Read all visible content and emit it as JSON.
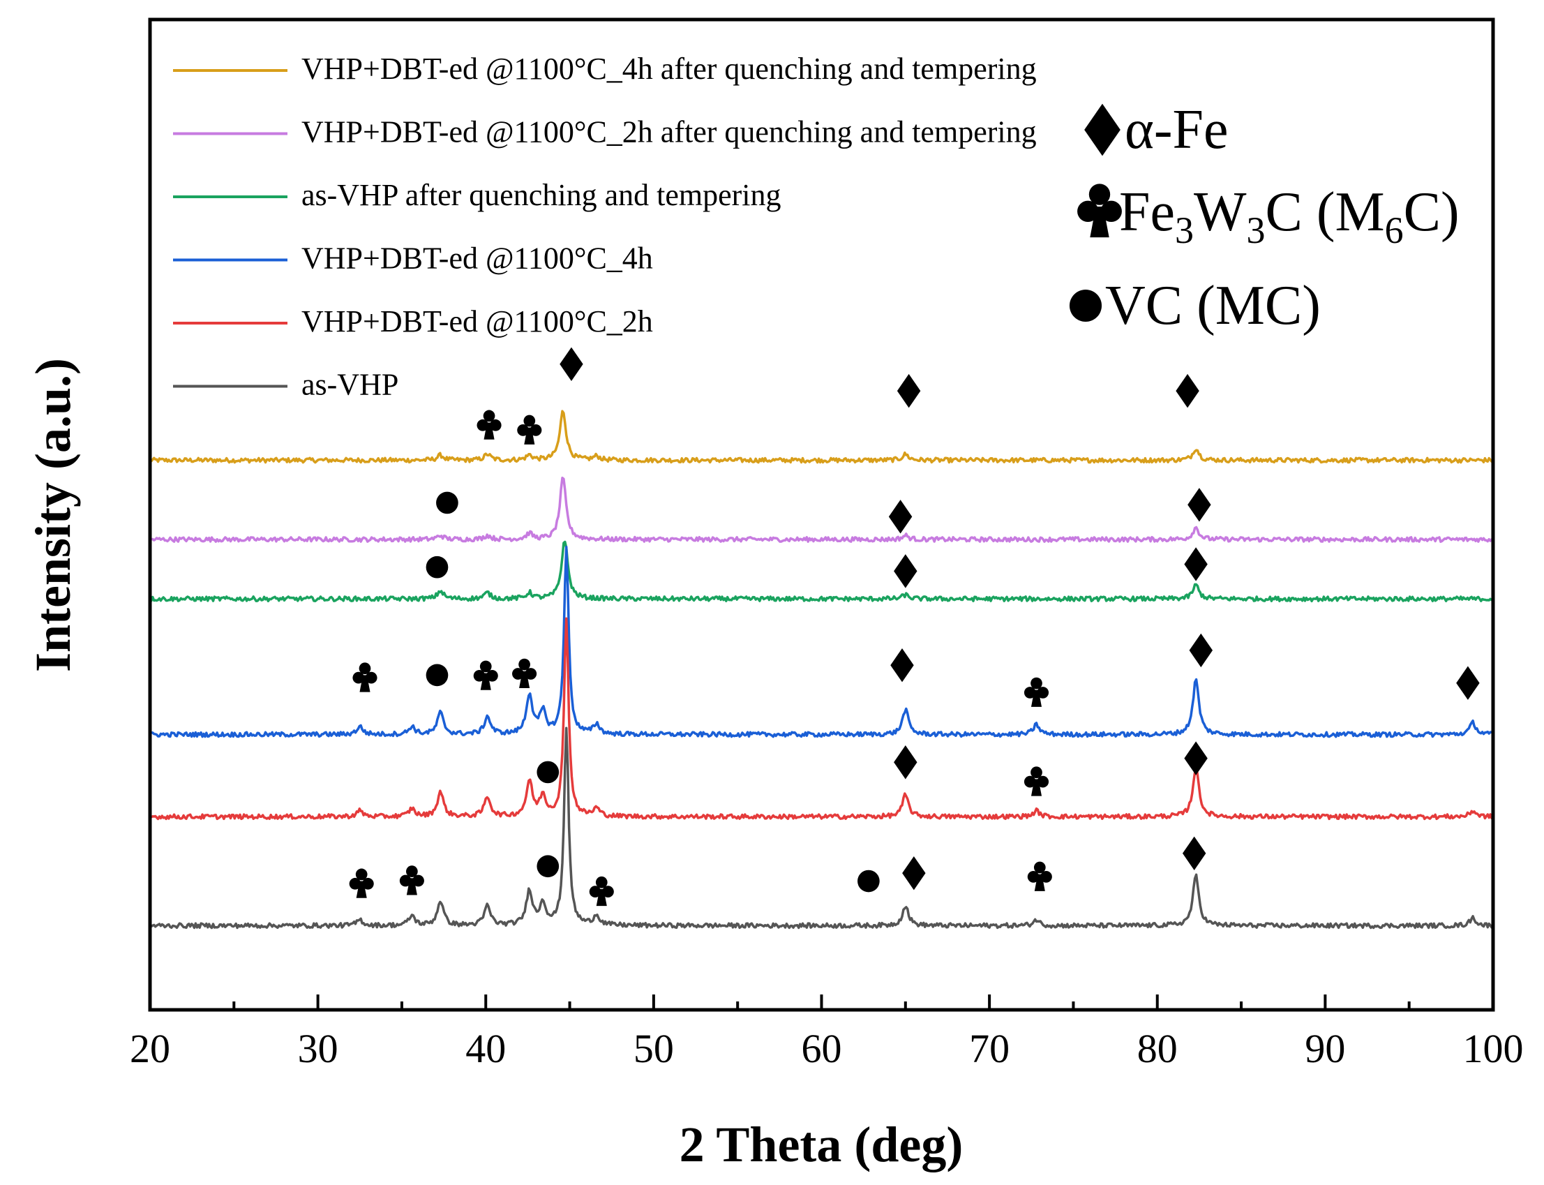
{
  "chart_data": {
    "type": "line",
    "xlabel": "2 Theta (deg)",
    "ylabel": "Intensity (a.u.)",
    "xlim": [
      20,
      100
    ],
    "xticks": [
      20,
      30,
      40,
      50,
      60,
      70,
      80,
      90,
      100
    ],
    "grid": false,
    "legend_position": "top-left",
    "series": [
      {
        "name": "VHP+DBT-ed @1100°C_4h after quenching and tempering",
        "color": "#D89E1A",
        "baseline": 0.555,
        "peaks": [
          [
            37.3,
            0.005
          ],
          [
            40.1,
            0.006
          ],
          [
            42.6,
            0.005
          ],
          [
            44.6,
            0.05
          ],
          [
            46.6,
            0.004
          ],
          [
            65.0,
            0.006
          ],
          [
            82.3,
            0.012
          ]
        ]
      },
      {
        "name": "VHP+DBT-ed @1100°C_2h after quenching and tempering",
        "color": "#C77BE0",
        "baseline": 0.475,
        "peaks": [
          [
            37.3,
            0.004
          ],
          [
            40.1,
            0.004
          ],
          [
            42.6,
            0.006
          ],
          [
            44.6,
            0.062
          ],
          [
            65.0,
            0.004
          ],
          [
            82.3,
            0.012
          ]
        ]
      },
      {
        "name": "as-VHP after quenching and tempering",
        "color": "#1AA35F",
        "baseline": 0.415,
        "peaks": [
          [
            37.3,
            0.008
          ],
          [
            40.1,
            0.006
          ],
          [
            42.6,
            0.006
          ],
          [
            44.7,
            0.06
          ],
          [
            65.0,
            0.004
          ],
          [
            82.3,
            0.014
          ]
        ]
      },
      {
        "name": "VHP+DBT-ed @1100°C_4h",
        "color": "#1A5FD6",
        "baseline": 0.278,
        "peaks": [
          [
            32.5,
            0.008
          ],
          [
            35.6,
            0.008
          ],
          [
            37.3,
            0.022
          ],
          [
            40.1,
            0.018
          ],
          [
            42.6,
            0.04
          ],
          [
            43.4,
            0.022
          ],
          [
            44.8,
            0.19
          ],
          [
            46.6,
            0.01
          ],
          [
            65.0,
            0.025
          ],
          [
            72.8,
            0.01
          ],
          [
            82.3,
            0.055
          ],
          [
            98.8,
            0.012
          ]
        ]
      },
      {
        "name": "VHP+DBT-ed @1100°C_2h",
        "color": "#E53B3B",
        "baseline": 0.195,
        "peaks": [
          [
            32.5,
            0.006
          ],
          [
            35.6,
            0.008
          ],
          [
            37.3,
            0.025
          ],
          [
            40.1,
            0.02
          ],
          [
            42.6,
            0.035
          ],
          [
            43.4,
            0.02
          ],
          [
            44.8,
            0.2
          ],
          [
            46.6,
            0.008
          ],
          [
            65.0,
            0.022
          ],
          [
            72.8,
            0.006
          ],
          [
            82.3,
            0.05
          ],
          [
            98.8,
            0.006
          ]
        ]
      },
      {
        "name": "as-VHP",
        "color": "#555555",
        "baseline": 0.085,
        "peaks": [
          [
            32.5,
            0.006
          ],
          [
            35.6,
            0.01
          ],
          [
            37.3,
            0.025
          ],
          [
            40.1,
            0.02
          ],
          [
            42.6,
            0.035
          ],
          [
            43.4,
            0.022
          ],
          [
            44.8,
            0.2
          ],
          [
            46.6,
            0.01
          ],
          [
            65.0,
            0.02
          ],
          [
            72.8,
            0.006
          ],
          [
            82.3,
            0.05
          ],
          [
            98.8,
            0.008
          ]
        ]
      }
    ],
    "phase_legend": [
      {
        "symbol": "diamond",
        "label": "α-Fe"
      },
      {
        "symbol": "club",
        "label_main": "Fe",
        "sub1": "3",
        "mid": "W",
        "sub2": "3",
        "mid2": "C (M",
        "sub3": "6",
        "end": "C)"
      },
      {
        "symbol": "circle",
        "label": "VC (MC)"
      }
    ],
    "annotations": [
      {
        "symbol": "club",
        "x": 40.2,
        "y": 0.593
      },
      {
        "symbol": "club",
        "x": 42.6,
        "y": 0.588
      },
      {
        "symbol": "diamond",
        "x": 45.1,
        "y": 0.652
      },
      {
        "symbol": "diamond",
        "x": 65.2,
        "y": 0.625
      },
      {
        "symbol": "diamond",
        "x": 81.8,
        "y": 0.625
      },
      {
        "symbol": "circle",
        "x": 37.7,
        "y": 0.512
      },
      {
        "symbol": "diamond",
        "x": 64.7,
        "y": 0.498
      },
      {
        "symbol": "diamond",
        "x": 82.5,
        "y": 0.51
      },
      {
        "symbol": "circle",
        "x": 37.1,
        "y": 0.447
      },
      {
        "symbol": "diamond",
        "x": 65.0,
        "y": 0.443
      },
      {
        "symbol": "diamond",
        "x": 82.3,
        "y": 0.45
      },
      {
        "symbol": "club",
        "x": 32.8,
        "y": 0.338
      },
      {
        "symbol": "circle",
        "x": 37.1,
        "y": 0.338
      },
      {
        "symbol": "club",
        "x": 40.0,
        "y": 0.34
      },
      {
        "symbol": "club",
        "x": 42.3,
        "y": 0.342
      },
      {
        "symbol": "diamond",
        "x": 64.8,
        "y": 0.348
      },
      {
        "symbol": "club",
        "x": 72.8,
        "y": 0.323
      },
      {
        "symbol": "diamond",
        "x": 82.6,
        "y": 0.363
      },
      {
        "symbol": "diamond",
        "x": 98.5,
        "y": 0.33
      },
      {
        "symbol": "circle",
        "x": 43.7,
        "y": 0.24
      },
      {
        "symbol": "diamond",
        "x": 65.0,
        "y": 0.25
      },
      {
        "symbol": "club",
        "x": 72.8,
        "y": 0.233
      },
      {
        "symbol": "diamond",
        "x": 82.3,
        "y": 0.254
      },
      {
        "symbol": "club",
        "x": 32.6,
        "y": 0.13
      },
      {
        "symbol": "club",
        "x": 35.6,
        "y": 0.133
      },
      {
        "symbol": "circle",
        "x": 43.7,
        "y": 0.145
      },
      {
        "symbol": "club",
        "x": 46.9,
        "y": 0.122
      },
      {
        "symbol": "circle",
        "x": 62.8,
        "y": 0.13
      },
      {
        "symbol": "diamond",
        "x": 65.5,
        "y": 0.138
      },
      {
        "symbol": "club",
        "x": 73.0,
        "y": 0.137
      },
      {
        "symbol": "diamond",
        "x": 82.2,
        "y": 0.158
      }
    ]
  }
}
